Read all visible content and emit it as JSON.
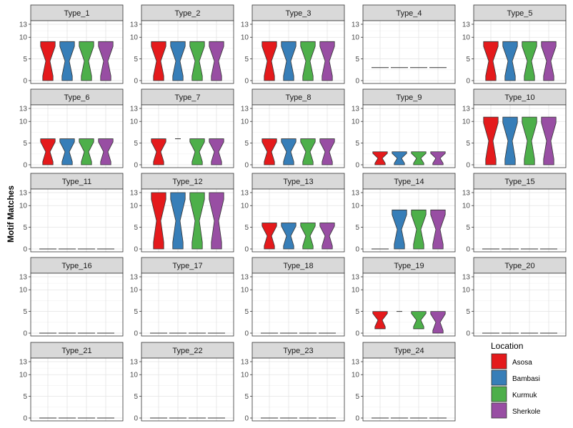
{
  "chart_data": {
    "type": "violin",
    "ylabel": "Motif Matches",
    "ylim": [
      0,
      13
    ],
    "y_ticks": [
      0,
      5,
      10,
      13
    ],
    "grid": true,
    "legend": {
      "title": "Location",
      "placement": "bottom-right"
    },
    "series": [
      {
        "name": "Asosa",
        "color": "#E41A1C"
      },
      {
        "name": "Bambasi",
        "color": "#377EB8"
      },
      {
        "name": "Kurmuk",
        "color": "#4DAF4A"
      },
      {
        "name": "Sherkole",
        "color": "#984EA3"
      }
    ],
    "panels": [
      {
        "title": "Type_1",
        "violins": [
          [
            0,
            9
          ],
          [
            0,
            9
          ],
          [
            0,
            9
          ],
          [
            0,
            9
          ]
        ]
      },
      {
        "title": "Type_2",
        "violins": [
          [
            0,
            9
          ],
          [
            0,
            9
          ],
          [
            0,
            9
          ],
          [
            0,
            9
          ]
        ]
      },
      {
        "title": "Type_3",
        "violins": [
          [
            0,
            9
          ],
          [
            0,
            9
          ],
          [
            0,
            9
          ],
          [
            0,
            9
          ]
        ]
      },
      {
        "title": "Type_4",
        "violins": [
          [
            3,
            3
          ],
          [
            3,
            3
          ],
          [
            3,
            3
          ],
          [
            3,
            3
          ]
        ]
      },
      {
        "title": "Type_5",
        "violins": [
          [
            0,
            9
          ],
          [
            0,
            9
          ],
          [
            0,
            9
          ],
          [
            0,
            9
          ]
        ]
      },
      {
        "title": "Type_6",
        "violins": [
          [
            0,
            6
          ],
          [
            0,
            6
          ],
          [
            0,
            6
          ],
          [
            0,
            6
          ]
        ]
      },
      {
        "title": "Type_7",
        "violins": [
          [
            0,
            6
          ],
          [
            6,
            6
          ],
          [
            0,
            6
          ],
          [
            0,
            6
          ]
        ]
      },
      {
        "title": "Type_8",
        "violins": [
          [
            0,
            6
          ],
          [
            0,
            6
          ],
          [
            0,
            6
          ],
          [
            0,
            6
          ]
        ]
      },
      {
        "title": "Type_9",
        "violins": [
          [
            0,
            3
          ],
          [
            0,
            3
          ],
          [
            0,
            3
          ],
          [
            0,
            3
          ]
        ]
      },
      {
        "title": "Type_10",
        "violins": [
          [
            0,
            11
          ],
          [
            0,
            11
          ],
          [
            0,
            11
          ],
          [
            0,
            11
          ]
        ]
      },
      {
        "title": "Type_11",
        "violins": [
          [
            0,
            0
          ],
          [
            0,
            0
          ],
          [
            0,
            0
          ],
          [
            0,
            0
          ]
        ]
      },
      {
        "title": "Type_12",
        "violins": [
          [
            0,
            13
          ],
          [
            0,
            13
          ],
          [
            0,
            13
          ],
          [
            0,
            13
          ]
        ]
      },
      {
        "title": "Type_13",
        "violins": [
          [
            0,
            6
          ],
          [
            0,
            6
          ],
          [
            0,
            6
          ],
          [
            0,
            6
          ]
        ]
      },
      {
        "title": "Type_14",
        "violins": [
          [
            0,
            0
          ],
          [
            0,
            9
          ],
          [
            0,
            9
          ],
          [
            0,
            9
          ]
        ]
      },
      {
        "title": "Type_15",
        "violins": [
          [
            0,
            0
          ],
          [
            0,
            0
          ],
          [
            0,
            0
          ],
          [
            0,
            0
          ]
        ]
      },
      {
        "title": "Type_16",
        "violins": [
          [
            0,
            0
          ],
          [
            0,
            0
          ],
          [
            0,
            0
          ],
          [
            0,
            0
          ]
        ]
      },
      {
        "title": "Type_17",
        "violins": [
          [
            0,
            0
          ],
          [
            0,
            0
          ],
          [
            0,
            0
          ],
          [
            0,
            0
          ]
        ]
      },
      {
        "title": "Type_18",
        "violins": [
          [
            0,
            0
          ],
          [
            0,
            0
          ],
          [
            0,
            0
          ],
          [
            0,
            0
          ]
        ]
      },
      {
        "title": "Type_19",
        "violins": [
          [
            1,
            5
          ],
          [
            5,
            5
          ],
          [
            1,
            5
          ],
          [
            0,
            5
          ]
        ]
      },
      {
        "title": "Type_20",
        "violins": [
          [
            0,
            0
          ],
          [
            0,
            0
          ],
          [
            0,
            0
          ],
          [
            0,
            0
          ]
        ]
      },
      {
        "title": "Type_21",
        "violins": [
          [
            0,
            0
          ],
          [
            0,
            0
          ],
          [
            0,
            0
          ],
          [
            0,
            0
          ]
        ]
      },
      {
        "title": "Type_22",
        "violins": [
          [
            0,
            0
          ],
          [
            0,
            0
          ],
          [
            0,
            0
          ],
          [
            0,
            0
          ]
        ]
      },
      {
        "title": "Type_23",
        "violins": [
          [
            0,
            0
          ],
          [
            0,
            0
          ],
          [
            0,
            0
          ],
          [
            0,
            0
          ]
        ]
      },
      {
        "title": "Type_24",
        "violins": [
          [
            0,
            0
          ],
          [
            0,
            0
          ],
          [
            0,
            0
          ],
          [
            0,
            0
          ]
        ]
      }
    ]
  }
}
